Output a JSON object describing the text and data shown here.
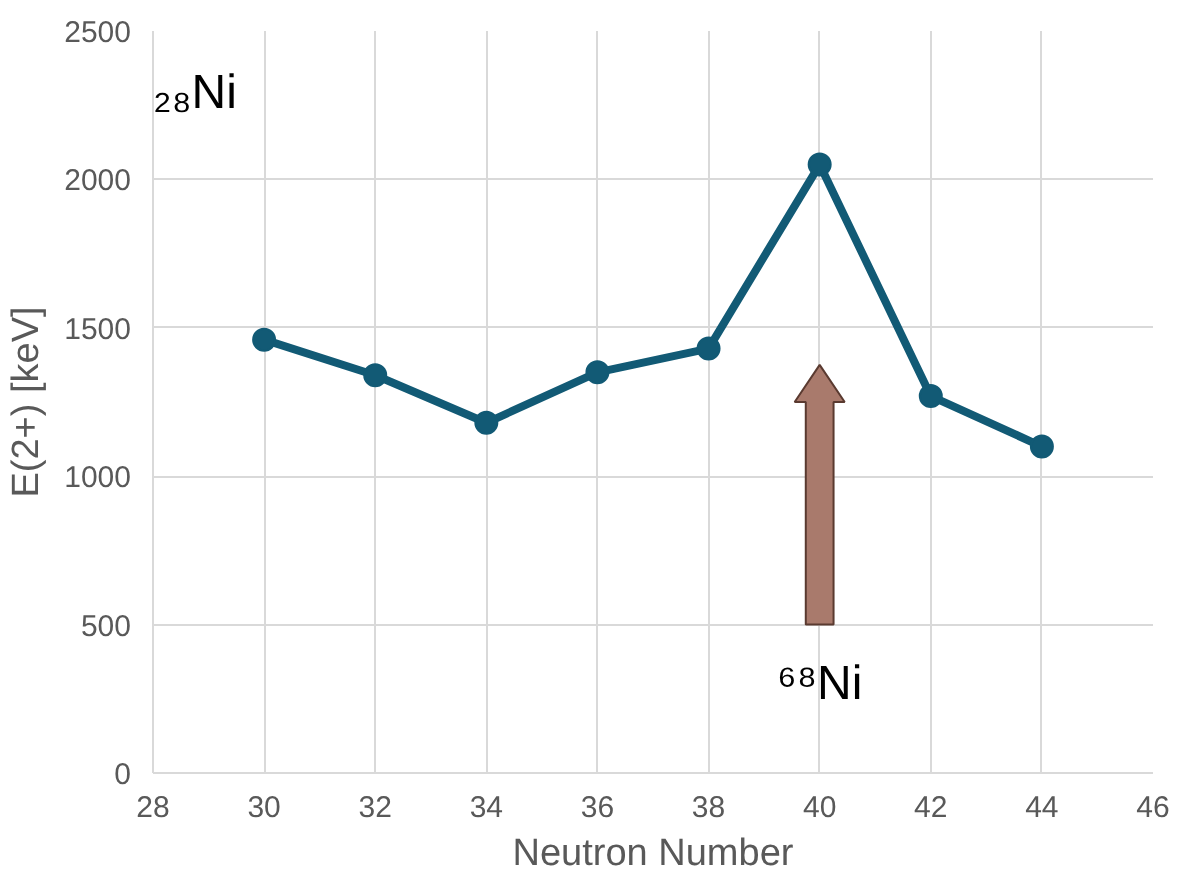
{
  "chart_data": {
    "type": "line",
    "xlabel": "Neutron Number",
    "ylabel": "E(2+) [keV]",
    "x": [
      30,
      32,
      34,
      36,
      38,
      40,
      42,
      44
    ],
    "series": [
      {
        "color": "#125a75",
        "values": [
          1460,
          1340,
          1180,
          1350,
          1430,
          2050,
          1270,
          1100
        ]
      }
    ],
    "xlim": [
      28,
      46
    ],
    "xticks": [
      28,
      30,
      32,
      34,
      36,
      38,
      40,
      42,
      44,
      46
    ],
    "ylim": [
      0,
      2500
    ],
    "yticks": [
      0,
      500,
      1000,
      1500,
      2000,
      2500
    ],
    "grid": true,
    "marker": "circle",
    "line_style": "solid",
    "annotations": [
      "₂₈Ni",
      "⁶⁸Ni"
    ]
  }
}
